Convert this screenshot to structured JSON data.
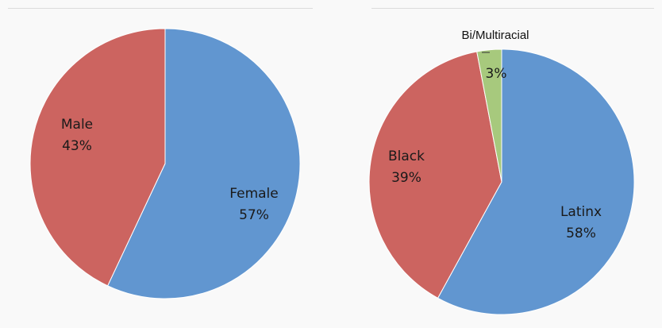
{
  "chart_data": [
    {
      "type": "pie",
      "title": "",
      "slices": [
        {
          "label": "Female",
          "value": 57,
          "value_label": "57%",
          "color": "#6196d0"
        },
        {
          "label": "Male",
          "value": 43,
          "value_label": "43%",
          "color": "#cc6460"
        }
      ]
    },
    {
      "type": "pie",
      "title": "",
      "slices": [
        {
          "label": "Latinx",
          "value": 58,
          "value_label": "58%",
          "color": "#6196d0"
        },
        {
          "label": "Black",
          "value": 39,
          "value_label": "39%",
          "color": "#cc6460"
        },
        {
          "label": "Bi/Multiracial",
          "value": 3,
          "value_label": "3%",
          "color": "#a7c97d"
        }
      ]
    }
  ]
}
